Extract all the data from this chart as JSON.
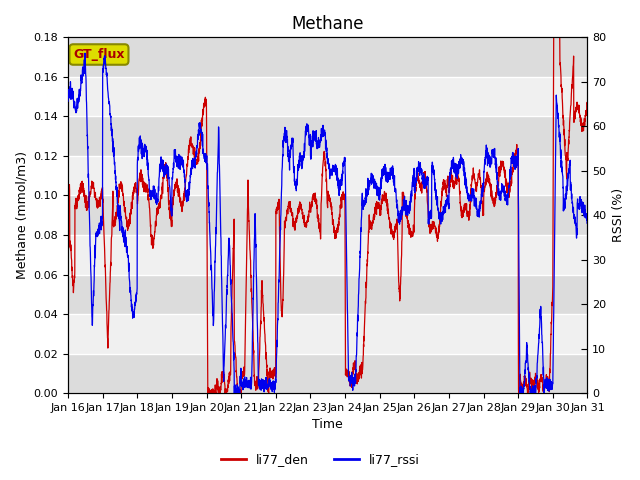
{
  "title": "Methane",
  "ylabel_left": "Methane (mmol/m3)",
  "ylabel_right": "RSSI (%)",
  "xlabel": "Time",
  "ylim_left": [
    0,
    0.18
  ],
  "ylim_right": [
    0,
    80
  ],
  "yticks_left": [
    0.0,
    0.02,
    0.04,
    0.06,
    0.08,
    0.1,
    0.12,
    0.14,
    0.16,
    0.18
  ],
  "yticks_right": [
    0,
    10,
    20,
    30,
    40,
    50,
    60,
    70,
    80
  ],
  "xtick_labels": [
    "Jan 16",
    "Jan 17",
    "Jan 18",
    "Jan 19",
    "Jan 20",
    "Jan 21",
    "Jan 22",
    "Jan 23",
    "Jan 24",
    "Jan 25",
    "Jan 26",
    "Jan 27",
    "Jan 28",
    "Jan 29",
    "Jan 30",
    "Jan 31"
  ],
  "color_red": "#CC0000",
  "color_blue": "#0000EE",
  "legend_labels": [
    "li77_den",
    "li77_rssi"
  ],
  "gt_flux_label": "GT_flux",
  "gt_flux_bg": "#DDDD00",
  "gt_flux_text_color": "#AA0000",
  "gt_flux_edge": "#888800",
  "background_color": "#FFFFFF",
  "plot_bg_light": "#F0F0F0",
  "plot_bg_dark": "#DCDCDC",
  "grid_color": "#FFFFFF",
  "title_fontsize": 12,
  "axis_fontsize": 9,
  "tick_fontsize": 8,
  "line_width": 0.9
}
